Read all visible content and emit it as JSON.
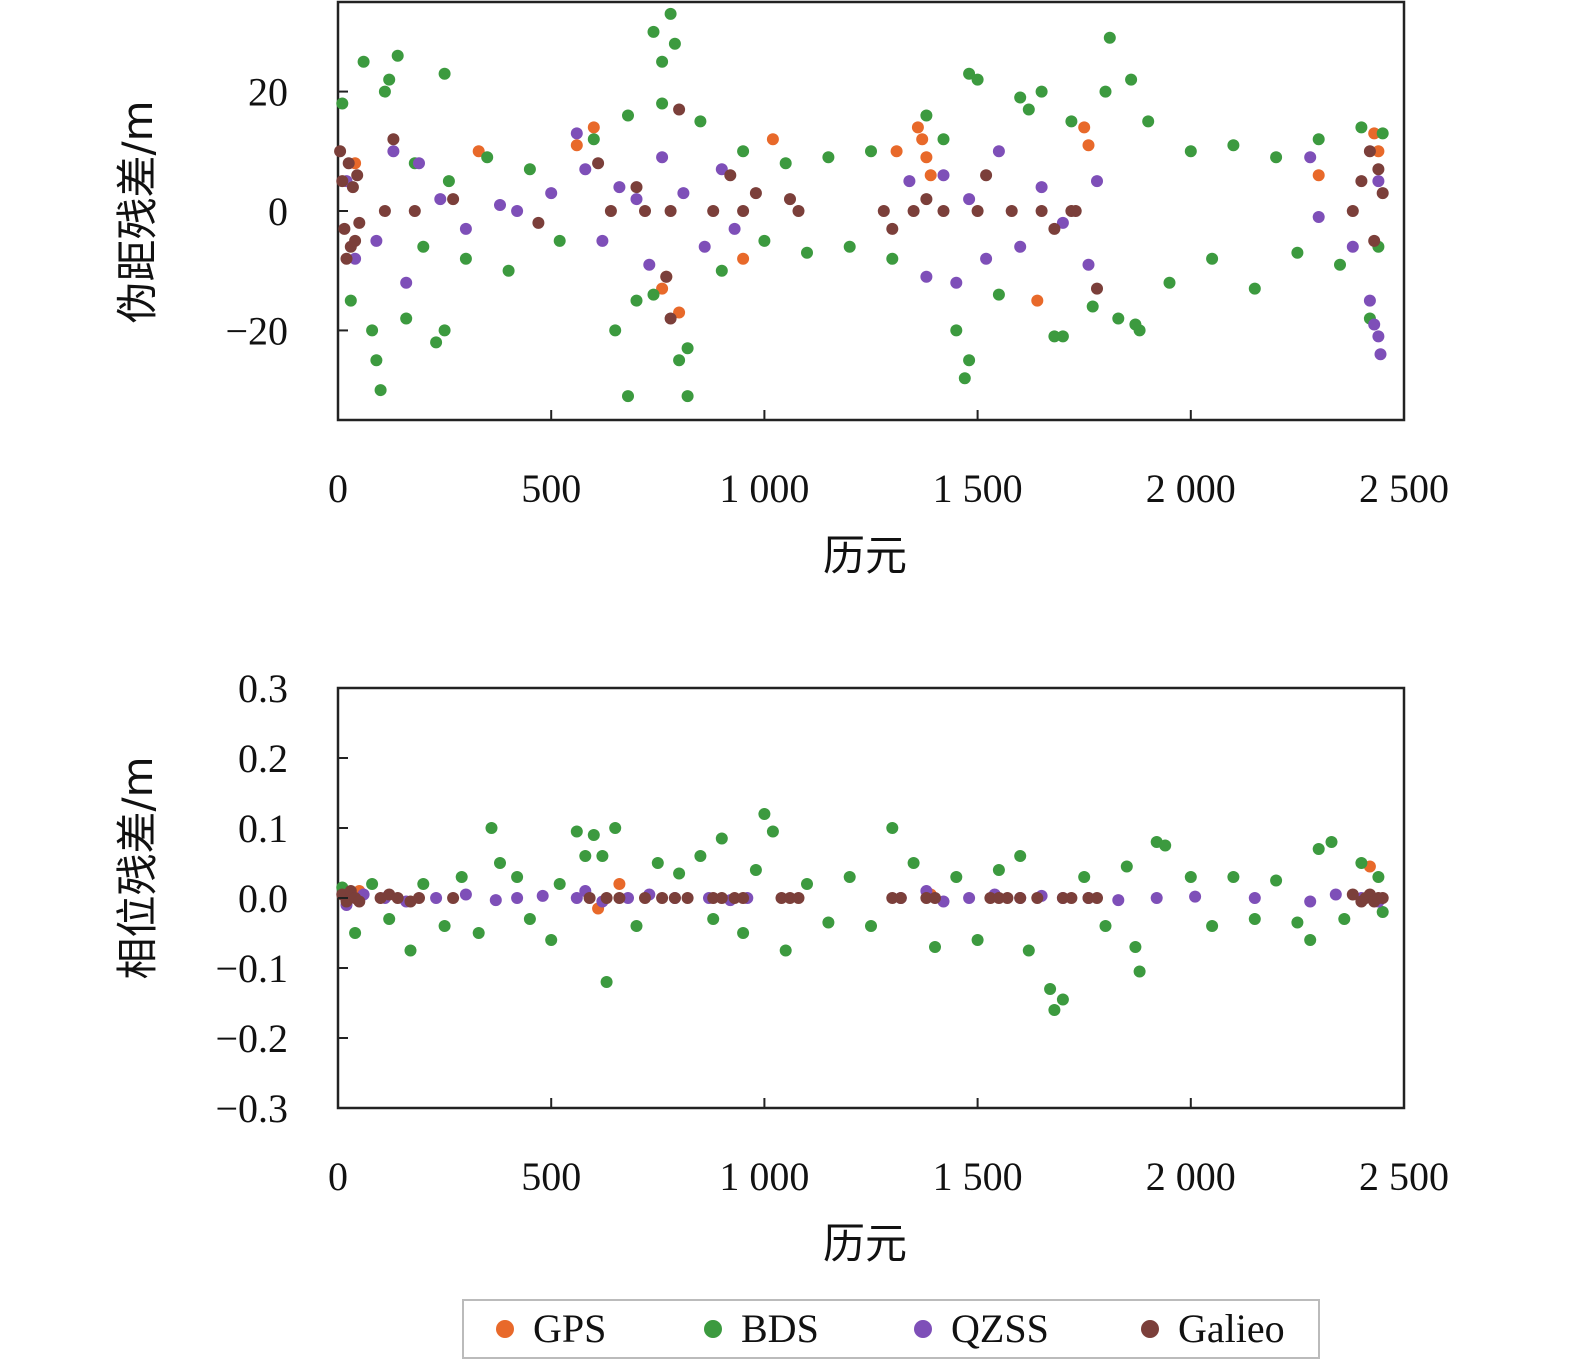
{
  "chart_data": [
    {
      "type": "scatter",
      "xlabel": "历元",
      "ylabel": "伪距残差/m",
      "xlim": [
        0,
        2500
      ],
      "ylim": [
        -35,
        35
      ],
      "x_ticks": [
        0,
        500,
        1000,
        1500,
        2000,
        2500
      ],
      "x_tick_labels": [
        "0",
        "500",
        "1 000",
        "1 500",
        "2 000",
        "2 500"
      ],
      "y_ticks": [
        -20,
        0,
        20
      ],
      "y_tick_labels": [
        "−20",
        "0",
        "20"
      ],
      "grid": false,
      "series": [
        {
          "name": "GPS",
          "color": "#e8692a",
          "x": [
            40,
            600,
            760,
            800,
            1020,
            1310,
            1360,
            1370,
            1380,
            1390,
            1750,
            1760,
            1640,
            2300,
            2430,
            2440,
            950,
            770,
            330,
            560
          ],
          "y": [
            8,
            14,
            -13,
            -17,
            12,
            10,
            14,
            12,
            9,
            6,
            14,
            11,
            -15,
            6,
            13,
            10,
            -8,
            -11,
            10,
            11
          ]
        },
        {
          "name": "BDS",
          "color": "#3c9a3f",
          "x": [
            10,
            30,
            60,
            80,
            100,
            120,
            140,
            160,
            180,
            200,
            230,
            250,
            260,
            300,
            350,
            400,
            450,
            520,
            600,
            650,
            680,
            700,
            740,
            760,
            780,
            800,
            820,
            850,
            900,
            950,
            1000,
            1050,
            1100,
            1150,
            1200,
            1250,
            1300,
            1380,
            1420,
            1450,
            1470,
            1500,
            1550,
            1600,
            1650,
            1680,
            1720,
            1770,
            1800,
            1830,
            1860,
            1880,
            1900,
            1950,
            2000,
            2050,
            2100,
            2150,
            2200,
            2250,
            2300,
            2350,
            2400,
            2420,
            2440,
            2450,
            90,
            110,
            760,
            790,
            740,
            680,
            820,
            1480,
            1480,
            1810,
            1870,
            250,
            1620,
            1700
          ],
          "y": [
            18,
            -15,
            25,
            -20,
            -30,
            22,
            26,
            -18,
            8,
            -6,
            -22,
            23,
            5,
            -8,
            9,
            -10,
            7,
            -5,
            12,
            -20,
            -31,
            -15,
            30,
            25,
            33,
            -25,
            -31,
            15,
            -10,
            10,
            -5,
            8,
            -7,
            9,
            -6,
            10,
            -8,
            16,
            12,
            -20,
            -28,
            22,
            -14,
            19,
            20,
            -21,
            15,
            -16,
            20,
            -18,
            22,
            -20,
            15,
            -12,
            10,
            -8,
            11,
            -13,
            9,
            -7,
            12,
            -9,
            14,
            -18,
            -6,
            13,
            -25,
            20,
            18,
            28,
            -14,
            16,
            -23,
            23,
            -25,
            29,
            -19,
            -20,
            17,
            -21
          ]
        },
        {
          "name": "QZSS",
          "color": "#7e4fb8",
          "x": [
            20,
            40,
            90,
            130,
            160,
            190,
            240,
            300,
            380,
            420,
            500,
            560,
            580,
            620,
            660,
            700,
            730,
            760,
            810,
            860,
            900,
            930,
            1340,
            1380,
            1420,
            1450,
            1480,
            1520,
            1550,
            1600,
            1650,
            1700,
            1760,
            1780,
            2280,
            2300,
            2380,
            2420,
            2440,
            2440,
            2445,
            2430
          ],
          "y": [
            5,
            -8,
            -5,
            10,
            -12,
            8,
            2,
            -3,
            1,
            0,
            3,
            13,
            7,
            -5,
            4,
            2,
            -9,
            9,
            3,
            -6,
            7,
            -3,
            5,
            -11,
            6,
            -12,
            2,
            -8,
            10,
            -6,
            4,
            -2,
            -9,
            5,
            9,
            -1,
            -6,
            -15,
            -21,
            5,
            -24,
            -19
          ]
        },
        {
          "name": "Galieo",
          "color": "#7b3f3a",
          "x": [
            5,
            10,
            15,
            20,
            25,
            30,
            35,
            40,
            45,
            50,
            110,
            130,
            180,
            270,
            470,
            610,
            640,
            700,
            720,
            780,
            800,
            880,
            920,
            950,
            980,
            1060,
            1080,
            1280,
            1300,
            1350,
            1380,
            1420,
            1500,
            1520,
            1580,
            1650,
            1680,
            1720,
            1730,
            1780,
            2380,
            2400,
            2420,
            2430,
            2440,
            2450,
            780,
            770
          ],
          "y": [
            10,
            5,
            -3,
            -8,
            8,
            -6,
            4,
            -5,
            6,
            -2,
            0,
            12,
            0,
            2,
            -2,
            8,
            0,
            4,
            0,
            0,
            17,
            0,
            6,
            0,
            3,
            2,
            0,
            0,
            -3,
            0,
            2,
            0,
            0,
            6,
            0,
            0,
            -3,
            0,
            0,
            -13,
            0,
            5,
            10,
            -5,
            7,
            3,
            -18,
            -11
          ]
        }
      ]
    },
    {
      "type": "scatter",
      "xlabel": "历元",
      "ylabel": "相位残差/m",
      "xlim": [
        0,
        2500
      ],
      "ylim": [
        -0.3,
        0.3
      ],
      "x_ticks": [
        0,
        500,
        1000,
        1500,
        2000,
        2500
      ],
      "x_tick_labels": [
        "0",
        "500",
        "1 000",
        "1 500",
        "2 000",
        "2 500"
      ],
      "y_ticks": [
        -0.3,
        -0.2,
        -0.1,
        0.0,
        0.1,
        0.2,
        0.3
      ],
      "y_tick_labels": [
        "−0.3",
        "−0.2",
        "−0.1",
        "0.0",
        "0.1",
        "0.2",
        "0.3"
      ],
      "grid": false,
      "series": [
        {
          "name": "GPS",
          "color": "#e8692a",
          "x": [
            50,
            660,
            2420,
            610,
            1390
          ],
          "y": [
            0.01,
            0.02,
            0.045,
            -0.015,
            0.005
          ]
        },
        {
          "name": "BDS",
          "color": "#3c9a3f",
          "x": [
            10,
            40,
            80,
            120,
            170,
            200,
            250,
            290,
            330,
            360,
            380,
            420,
            450,
            500,
            520,
            560,
            580,
            600,
            620,
            630,
            650,
            700,
            750,
            800,
            850,
            880,
            900,
            950,
            980,
            1000,
            1020,
            1050,
            1100,
            1150,
            1200,
            1250,
            1300,
            1350,
            1400,
            1450,
            1500,
            1550,
            1600,
            1620,
            1670,
            1680,
            1700,
            1750,
            1800,
            1850,
            1870,
            1880,
            1920,
            1940,
            2000,
            2050,
            2100,
            2150,
            2200,
            2250,
            2280,
            2300,
            2330,
            2360,
            2400,
            2440,
            2450
          ],
          "y": [
            0.015,
            -0.05,
            0.02,
            -0.03,
            -0.075,
            0.02,
            -0.04,
            0.03,
            -0.05,
            0.1,
            0.05,
            0.03,
            -0.03,
            -0.06,
            0.02,
            0.095,
            0.06,
            0.09,
            0.06,
            -0.12,
            0.1,
            -0.04,
            0.05,
            0.035,
            0.06,
            -0.03,
            0.085,
            -0.05,
            0.04,
            0.12,
            0.095,
            -0.075,
            0.02,
            -0.035,
            0.03,
            -0.04,
            0.1,
            0.05,
            -0.07,
            0.03,
            -0.06,
            0.04,
            0.06,
            -0.075,
            -0.13,
            -0.16,
            -0.145,
            0.03,
            -0.04,
            0.045,
            -0.07,
            -0.105,
            0.08,
            0.075,
            0.03,
            -0.04,
            0.03,
            -0.03,
            0.025,
            -0.035,
            -0.06,
            0.07,
            0.08,
            -0.03,
            0.05,
            0.03,
            -0.02
          ]
        },
        {
          "name": "QZSS",
          "color": "#7e4fb8",
          "x": [
            20,
            60,
            110,
            160,
            230,
            300,
            370,
            420,
            480,
            560,
            580,
            620,
            680,
            730,
            790,
            870,
            920,
            960,
            1320,
            1380,
            1420,
            1480,
            1540,
            1600,
            1650,
            1700,
            1760,
            1830,
            1920,
            2010,
            2150,
            2280,
            2340,
            2400,
            2440
          ],
          "y": [
            -0.01,
            0.005,
            0.0,
            -0.005,
            0.0,
            0.005,
            -0.003,
            0.0,
            0.003,
            0.0,
            0.01,
            -0.005,
            0.0,
            0.005,
            0.0,
            0.0,
            -0.003,
            0.0,
            0.0,
            0.01,
            -0.005,
            0.0,
            0.005,
            0.0,
            0.003,
            0.0,
            0.0,
            -0.003,
            0.0,
            0.002,
            0.0,
            -0.005,
            0.005,
            0.0,
            -0.005
          ]
        },
        {
          "name": "Galieo",
          "color": "#7b3f3a",
          "x": [
            10,
            20,
            30,
            40,
            50,
            100,
            120,
            140,
            170,
            190,
            270,
            590,
            630,
            660,
            720,
            760,
            790,
            820,
            880,
            900,
            930,
            950,
            1040,
            1060,
            1080,
            1300,
            1320,
            1380,
            1400,
            1530,
            1550,
            1570,
            1600,
            1640,
            1700,
            1720,
            1760,
            1780,
            2380,
            2400,
            2410,
            2420,
            2430,
            2440,
            2450
          ],
          "y": [
            0.005,
            -0.005,
            0.01,
            0.0,
            -0.005,
            0.0,
            0.005,
            0.0,
            -0.005,
            0.0,
            0.0,
            0.0,
            0.0,
            0.0,
            0.0,
            0.0,
            0.0,
            0.0,
            0.0,
            0.0,
            0.0,
            0.0,
            0.0,
            0.0,
            0.0,
            0.0,
            0.0,
            0.0,
            0.0,
            0.0,
            0.0,
            0.0,
            0.0,
            0.0,
            0.0,
            0.0,
            0.0,
            0.0,
            0.005,
            -0.005,
            0.0,
            0.005,
            -0.005,
            0.0,
            0.0
          ]
        }
      ]
    }
  ],
  "legend": {
    "placement": "bottom-center",
    "items": [
      {
        "label": "GPS",
        "color": "#e8692a"
      },
      {
        "label": "BDS",
        "color": "#3c9a3f"
      },
      {
        "label": "QZSS",
        "color": "#7e4fb8"
      },
      {
        "label": "Galieo",
        "color": "#7b3f3a"
      }
    ]
  }
}
